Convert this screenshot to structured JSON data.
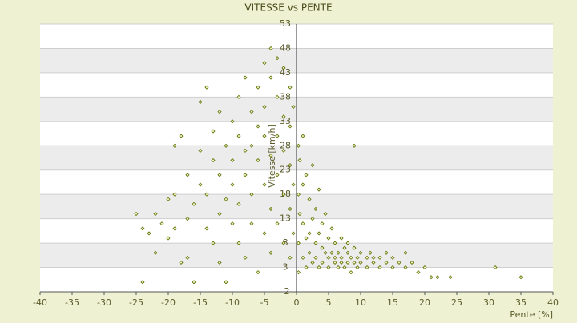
{
  "chart_data": {
    "type": "scatter",
    "title": "VITESSE vs PENTE",
    "x_label": "Pente [%]",
    "y_label": "Vitesse [km/h]",
    "color": "#5f6e00",
    "xlim": [
      -40,
      40
    ],
    "xticks": [
      -40,
      -35,
      -30,
      -25,
      -20,
      -15,
      -10,
      -5,
      0,
      5,
      10,
      15,
      20,
      25,
      30,
      35,
      40
    ],
    "ylim": [
      -2,
      53
    ],
    "yticks": [
      -2,
      3,
      8,
      13,
      18,
      23,
      28,
      33,
      38,
      43,
      48,
      53
    ],
    "grid": true,
    "x": [
      -25,
      -24,
      -24,
      -23,
      -22,
      -22,
      -21,
      -20,
      -20,
      -19,
      -19,
      -19,
      -18,
      -18,
      -17,
      -17,
      -17,
      -16,
      -16,
      -15,
      -15,
      -15,
      -14,
      -14,
      -14,
      -13,
      -13,
      -13,
      -12,
      -12,
      -12,
      -12,
      -11,
      -11,
      -11,
      -10,
      -10,
      -10,
      -10,
      -9,
      -9,
      -9,
      -9,
      -8,
      -8,
      -8,
      -8,
      -7,
      -7,
      -7,
      -7,
      -6,
      -6,
      -6,
      -6,
      -5,
      -5,
      -5,
      -5,
      -5,
      -4,
      -4,
      -4,
      -4,
      -4,
      -3,
      -3,
      -3,
      -3,
      -3,
      -2,
      -2,
      -2,
      -2,
      -2,
      -1,
      -1,
      -1,
      -1,
      -1,
      -0.5,
      -0.5,
      -0.5,
      0.3,
      0.3,
      0.3,
      0.3,
      0.5,
      0.5,
      1,
      1,
      1,
      1,
      1.5,
      1.5,
      1.5,
      2,
      2,
      2,
      2.5,
      2.5,
      2.5,
      3,
      3,
      3,
      3.5,
      3.5,
      3.5,
      4,
      4,
      4,
      4.5,
      4.5,
      5,
      5,
      5,
      5.5,
      5.5,
      6,
      6,
      6,
      6.5,
      6.5,
      7,
      7,
      7,
      7.5,
      7.5,
      8,
      8,
      8,
      8.5,
      8.5,
      9,
      9,
      9,
      9.5,
      9.5,
      10,
      10,
      11,
      11,
      11.5,
      12,
      12,
      13,
      13,
      14,
      14,
      15,
      15,
      16,
      17,
      17,
      18,
      19,
      20,
      21,
      22,
      24,
      31,
      35
    ],
    "y": [
      14,
      11,
      0,
      10,
      6,
      14,
      12,
      9,
      17,
      11,
      18,
      28,
      30,
      4,
      13,
      22,
      5,
      0,
      16,
      20,
      37,
      27,
      11,
      40,
      18,
      25,
      31,
      8,
      14,
      22,
      35,
      4,
      28,
      17,
      0,
      33,
      25,
      12,
      20,
      38,
      30,
      16,
      8,
      42,
      27,
      22,
      5,
      35,
      18,
      28,
      12,
      40,
      25,
      32,
      2,
      45,
      30,
      20,
      10,
      36,
      48,
      42,
      26,
      15,
      6,
      46,
      38,
      30,
      22,
      12,
      44,
      34,
      27,
      18,
      8,
      40,
      32,
      24,
      15,
      5,
      36,
      20,
      10,
      28,
      18,
      8,
      2,
      25,
      14,
      30,
      20,
      12,
      5,
      22,
      9,
      3,
      17,
      10,
      6,
      24,
      13,
      4,
      15,
      8,
      5,
      19,
      10,
      3,
      12,
      7,
      4,
      14,
      6,
      9,
      5,
      3,
      11,
      6,
      8,
      4,
      5,
      6,
      3,
      9,
      5,
      4,
      7,
      3,
      6,
      4,
      8,
      5,
      2,
      7,
      4,
      28,
      5,
      3,
      6,
      4,
      5,
      3,
      6,
      4,
      5,
      3,
      5,
      4,
      6,
      3,
      5,
      4,
      6,
      3,
      4,
      2,
      3,
      1,
      1,
      1,
      3,
      1
    ]
  }
}
